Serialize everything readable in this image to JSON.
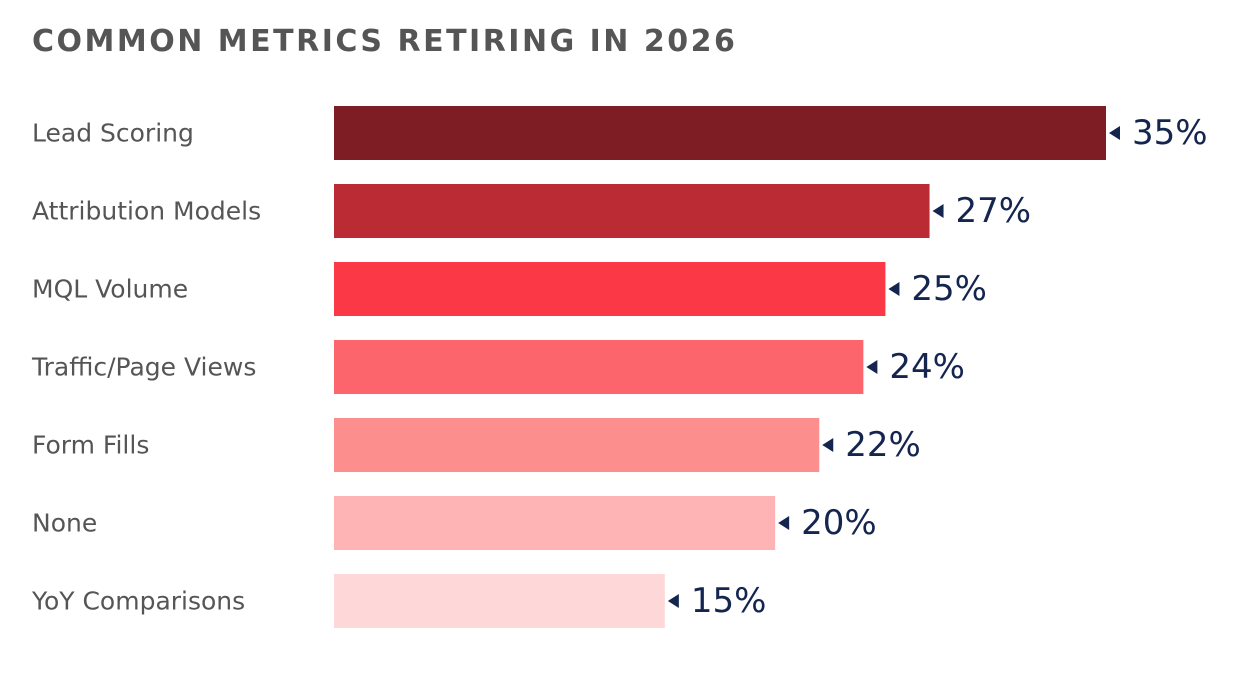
{
  "chart_data": {
    "type": "bar",
    "orientation": "horizontal",
    "title": "COMMON METRICS RETIRING IN 2026",
    "categories": [
      "Lead Scoring",
      "Attribution Models",
      "MQL Volume",
      "Traffic/Page Views",
      "Form Fills",
      "None",
      "YoY Comparisons"
    ],
    "values": [
      35,
      27,
      25,
      24,
      22,
      20,
      15
    ],
    "value_labels": [
      "35%",
      "27%",
      "25%",
      "24%",
      "22%",
      "20%",
      "15%"
    ],
    "unit": "%",
    "bar_colors": [
      "#7e1e24",
      "#bb2b33",
      "#fb3845",
      "#fc656b",
      "#fd8e8e",
      "#feb3b4",
      "#fed8d9"
    ],
    "marker_color": "#14264f",
    "xlim": [
      0,
      35
    ],
    "grid": false,
    "legend": "none"
  }
}
